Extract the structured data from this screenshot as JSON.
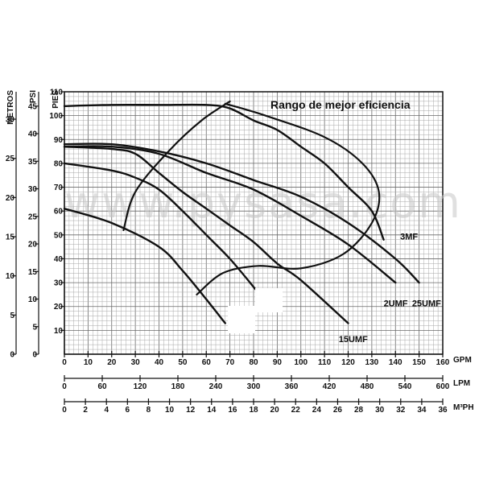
{
  "chart_data": {
    "type": "line",
    "title": "",
    "annotation": "Rango de mejor eficiencia",
    "watermark": "www.pysasa.com",
    "grid": true,
    "x": {
      "label": "GPM",
      "range": [
        0,
        160
      ],
      "ticks": [
        0,
        10,
        20,
        30,
        40,
        50,
        60,
        70,
        80,
        90,
        100,
        110,
        120,
        130,
        140,
        150,
        160
      ]
    },
    "x2": {
      "label": "LPM",
      "range": [
        0,
        600
      ],
      "ticks": [
        0,
        60,
        120,
        180,
        240,
        300,
        360,
        420,
        480,
        540,
        600
      ]
    },
    "x3": {
      "label": "M³PH",
      "range": [
        0,
        36
      ],
      "ticks": [
        0,
        2,
        4,
        6,
        8,
        10,
        12,
        14,
        16,
        18,
        20,
        22,
        24,
        26,
        28,
        30,
        32,
        34,
        36
      ]
    },
    "y": {
      "label": "PIES",
      "range": [
        0,
        110
      ],
      "ticks": [
        10,
        20,
        30,
        40,
        50,
        60,
        70,
        80,
        90,
        100,
        110
      ]
    },
    "y2": {
      "label": "PSI",
      "range": [
        0,
        47.6
      ],
      "ticks": [
        0,
        5,
        10,
        15,
        20,
        25,
        30,
        35,
        40,
        45
      ]
    },
    "y3": {
      "label": "METROS",
      "range": [
        0,
        33.5
      ],
      "ticks": [
        0,
        5,
        10,
        15,
        20,
        25,
        30
      ]
    },
    "series": [
      {
        "name": "3MF",
        "x": [
          0,
          20,
          40,
          60,
          70,
          80,
          90,
          100,
          110,
          120,
          130,
          135
        ],
        "y": [
          104,
          104.5,
          104.5,
          104.5,
          103,
          98,
          94,
          87,
          80,
          70,
          60,
          48
        ]
      },
      {
        "name": "25UMF",
        "x": [
          0,
          20,
          40,
          60,
          80,
          100,
          120,
          140,
          150
        ],
        "y": [
          88,
          88,
          85,
          80,
          73,
          66,
          55,
          40,
          30
        ]
      },
      {
        "name": "2UMF",
        "x": [
          0,
          20,
          40,
          60,
          80,
          100,
          120,
          140
        ],
        "y": [
          87,
          87,
          84,
          76,
          69,
          58,
          46,
          30
        ]
      },
      {
        "name": "15UMF",
        "x": [
          0,
          20,
          30,
          40,
          50,
          60,
          70,
          80,
          90,
          100,
          120
        ],
        "y": [
          87,
          86,
          84,
          76,
          68,
          61,
          54,
          47,
          38,
          31,
          13
        ]
      },
      {
        "name": "",
        "x": [
          0,
          20,
          30,
          40,
          50,
          60,
          70,
          81
        ],
        "y": [
          80,
          77,
          74,
          69,
          60,
          50,
          40,
          27
        ]
      },
      {
        "name": "",
        "x": [
          0,
          20,
          40,
          50,
          60,
          68
        ],
        "y": [
          61,
          55,
          45,
          35,
          23,
          13
        ]
      }
    ]
  }
}
